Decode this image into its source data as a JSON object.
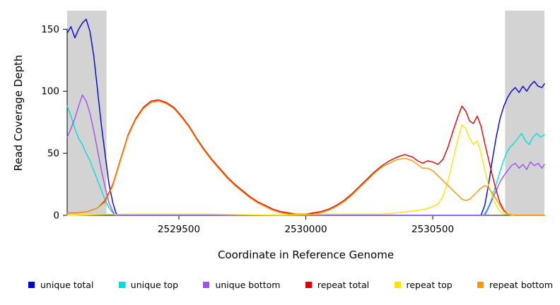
{
  "chart_data": {
    "type": "line",
    "title": "",
    "xlabel": "Coordinate in Reference Genome",
    "ylabel": "Read Coverage Depth",
    "xlim": [
      2529060,
      2530940
    ],
    "ylim": [
      0,
      165
    ],
    "x_ticks": [
      2529500,
      2530000,
      2530500
    ],
    "y_ticks": [
      0,
      50,
      100,
      150
    ],
    "grid": false,
    "legend_position": "bottom",
    "band_color": "#d3d3d3",
    "shaded_regions": [
      [
        2529060,
        2529215
      ],
      [
        2530785,
        2530940
      ]
    ],
    "series": [
      {
        "name": "unique total",
        "color": "#0000e0",
        "points": [
          [
            2529060,
            147
          ],
          [
            2529075,
            152
          ],
          [
            2529090,
            143
          ],
          [
            2529105,
            150
          ],
          [
            2529120,
            155
          ],
          [
            2529135,
            158
          ],
          [
            2529150,
            148
          ],
          [
            2529165,
            128
          ],
          [
            2529180,
            100
          ],
          [
            2529195,
            72
          ],
          [
            2529210,
            48
          ],
          [
            2529225,
            25
          ],
          [
            2529240,
            10
          ],
          [
            2529252,
            2
          ],
          [
            2529260,
            0
          ],
          [
            2530690,
            0
          ],
          [
            2530705,
            8
          ],
          [
            2530720,
            25
          ],
          [
            2530735,
            45
          ],
          [
            2530750,
            63
          ],
          [
            2530765,
            78
          ],
          [
            2530780,
            88
          ],
          [
            2530795,
            95
          ],
          [
            2530810,
            100
          ],
          [
            2530825,
            103
          ],
          [
            2530840,
            99
          ],
          [
            2530855,
            104
          ],
          [
            2530870,
            100
          ],
          [
            2530885,
            105
          ],
          [
            2530900,
            108
          ],
          [
            2530915,
            104
          ],
          [
            2530930,
            103
          ],
          [
            2530940,
            106
          ]
        ]
      },
      {
        "name": "unique top",
        "color": "#00dde0",
        "points": [
          [
            2529060,
            88
          ],
          [
            2529075,
            80
          ],
          [
            2529090,
            70
          ],
          [
            2529105,
            62
          ],
          [
            2529120,
            57
          ],
          [
            2529135,
            50
          ],
          [
            2529150,
            44
          ],
          [
            2529165,
            36
          ],
          [
            2529180,
            28
          ],
          [
            2529195,
            20
          ],
          [
            2529210,
            12
          ],
          [
            2529225,
            6
          ],
          [
            2529240,
            2
          ],
          [
            2529250,
            0
          ],
          [
            2530700,
            0
          ],
          [
            2530715,
            5
          ],
          [
            2530730,
            12
          ],
          [
            2530745,
            22
          ],
          [
            2530760,
            32
          ],
          [
            2530775,
            42
          ],
          [
            2530790,
            50
          ],
          [
            2530805,
            55
          ],
          [
            2530820,
            58
          ],
          [
            2530835,
            62
          ],
          [
            2530850,
            66
          ],
          [
            2530865,
            60
          ],
          [
            2530880,
            57
          ],
          [
            2530895,
            63
          ],
          [
            2530910,
            66
          ],
          [
            2530925,
            63
          ],
          [
            2530940,
            65
          ]
        ]
      },
      {
        "name": "unique bottom",
        "color": "#a050f0",
        "points": [
          [
            2529060,
            63
          ],
          [
            2529075,
            70
          ],
          [
            2529090,
            78
          ],
          [
            2529105,
            88
          ],
          [
            2529120,
            97
          ],
          [
            2529135,
            92
          ],
          [
            2529150,
            82
          ],
          [
            2529165,
            68
          ],
          [
            2529180,
            52
          ],
          [
            2529195,
            36
          ],
          [
            2529210,
            22
          ],
          [
            2529225,
            10
          ],
          [
            2529240,
            3
          ],
          [
            2529250,
            0
          ],
          [
            2530705,
            0
          ],
          [
            2530720,
            6
          ],
          [
            2530735,
            13
          ],
          [
            2530750,
            20
          ],
          [
            2530765,
            27
          ],
          [
            2530780,
            32
          ],
          [
            2530795,
            36
          ],
          [
            2530810,
            40
          ],
          [
            2530825,
            42
          ],
          [
            2530840,
            38
          ],
          [
            2530855,
            41
          ],
          [
            2530870,
            37
          ],
          [
            2530885,
            43
          ],
          [
            2530900,
            40
          ],
          [
            2530915,
            42
          ],
          [
            2530930,
            38
          ],
          [
            2530940,
            41
          ]
        ]
      },
      {
        "name": "repeat total",
        "color": "#e00000",
        "points": [
          [
            2529060,
            2
          ],
          [
            2529100,
            2
          ],
          [
            2529140,
            3
          ],
          [
            2529180,
            6
          ],
          [
            2529210,
            12
          ],
          [
            2529240,
            25
          ],
          [
            2529270,
            45
          ],
          [
            2529300,
            65
          ],
          [
            2529330,
            78
          ],
          [
            2529360,
            87
          ],
          [
            2529390,
            92
          ],
          [
            2529420,
            93
          ],
          [
            2529450,
            91
          ],
          [
            2529480,
            87
          ],
          [
            2529510,
            80
          ],
          [
            2529540,
            72
          ],
          [
            2529570,
            62
          ],
          [
            2529600,
            53
          ],
          [
            2529630,
            45
          ],
          [
            2529660,
            38
          ],
          [
            2529690,
            31
          ],
          [
            2529720,
            25
          ],
          [
            2529750,
            20
          ],
          [
            2529780,
            15
          ],
          [
            2529810,
            11
          ],
          [
            2529840,
            8
          ],
          [
            2529870,
            5
          ],
          [
            2529900,
            3
          ],
          [
            2529930,
            2
          ],
          [
            2529960,
            1
          ],
          [
            2530000,
            1
          ],
          [
            2530030,
            2
          ],
          [
            2530060,
            3
          ],
          [
            2530090,
            5
          ],
          [
            2530120,
            8
          ],
          [
            2530150,
            12
          ],
          [
            2530180,
            17
          ],
          [
            2530210,
            23
          ],
          [
            2530240,
            29
          ],
          [
            2530270,
            35
          ],
          [
            2530300,
            40
          ],
          [
            2530330,
            44
          ],
          [
            2530360,
            47
          ],
          [
            2530390,
            49
          ],
          [
            2530420,
            47
          ],
          [
            2530440,
            44
          ],
          [
            2530460,
            42
          ],
          [
            2530480,
            44
          ],
          [
            2530500,
            43
          ],
          [
            2530520,
            41
          ],
          [
            2530540,
            45
          ],
          [
            2530560,
            55
          ],
          [
            2530580,
            68
          ],
          [
            2530600,
            80
          ],
          [
            2530615,
            88
          ],
          [
            2530630,
            84
          ],
          [
            2530645,
            76
          ],
          [
            2530660,
            74
          ],
          [
            2530675,
            80
          ],
          [
            2530690,
            72
          ],
          [
            2530705,
            58
          ],
          [
            2530720,
            45
          ],
          [
            2530735,
            32
          ],
          [
            2530750,
            20
          ],
          [
            2530765,
            10
          ],
          [
            2530780,
            4
          ],
          [
            2530795,
            1
          ],
          [
            2530820,
            0
          ],
          [
            2530940,
            0
          ]
        ]
      },
      {
        "name": "repeat top",
        "color": "#ffe400",
        "points": [
          [
            2529060,
            0
          ],
          [
            2529300,
            1
          ],
          [
            2529390,
            1
          ],
          [
            2529600,
            1
          ],
          [
            2529900,
            0
          ],
          [
            2530100,
            1
          ],
          [
            2530300,
            1
          ],
          [
            2530360,
            2
          ],
          [
            2530400,
            3
          ],
          [
            2530440,
            4
          ],
          [
            2530470,
            5
          ],
          [
            2530500,
            7
          ],
          [
            2530520,
            9
          ],
          [
            2530540,
            15
          ],
          [
            2530560,
            28
          ],
          [
            2530580,
            45
          ],
          [
            2530600,
            62
          ],
          [
            2530615,
            73
          ],
          [
            2530630,
            70
          ],
          [
            2530645,
            62
          ],
          [
            2530660,
            57
          ],
          [
            2530675,
            60
          ],
          [
            2530690,
            50
          ],
          [
            2530705,
            36
          ],
          [
            2530720,
            24
          ],
          [
            2530735,
            15
          ],
          [
            2530750,
            8
          ],
          [
            2530765,
            3
          ],
          [
            2530780,
            1
          ],
          [
            2530820,
            0
          ],
          [
            2530940,
            0
          ]
        ]
      },
      {
        "name": "repeat bottom",
        "color": "#ff9500",
        "points": [
          [
            2529060,
            2
          ],
          [
            2529100,
            2
          ],
          [
            2529140,
            3
          ],
          [
            2529180,
            6
          ],
          [
            2529210,
            11
          ],
          [
            2529240,
            24
          ],
          [
            2529270,
            44
          ],
          [
            2529300,
            64
          ],
          [
            2529330,
            77
          ],
          [
            2529360,
            86
          ],
          [
            2529390,
            91
          ],
          [
            2529420,
            92
          ],
          [
            2529450,
            90
          ],
          [
            2529480,
            86
          ],
          [
            2529510,
            79
          ],
          [
            2529540,
            71
          ],
          [
            2529570,
            61
          ],
          [
            2529600,
            52
          ],
          [
            2529630,
            44
          ],
          [
            2529660,
            37
          ],
          [
            2529690,
            30
          ],
          [
            2529720,
            24
          ],
          [
            2529750,
            19
          ],
          [
            2529780,
            14
          ],
          [
            2529810,
            10
          ],
          [
            2529840,
            7
          ],
          [
            2529870,
            4
          ],
          [
            2529900,
            2
          ],
          [
            2529930,
            1
          ],
          [
            2529960,
            1
          ],
          [
            2530000,
            1
          ],
          [
            2530030,
            1
          ],
          [
            2530060,
            2
          ],
          [
            2530090,
            4
          ],
          [
            2530120,
            7
          ],
          [
            2530150,
            11
          ],
          [
            2530180,
            16
          ],
          [
            2530210,
            22
          ],
          [
            2530240,
            28
          ],
          [
            2530270,
            34
          ],
          [
            2530300,
            39
          ],
          [
            2530330,
            42
          ],
          [
            2530360,
            45
          ],
          [
            2530390,
            46
          ],
          [
            2530420,
            44
          ],
          [
            2530440,
            41
          ],
          [
            2530460,
            38
          ],
          [
            2530480,
            38
          ],
          [
            2530500,
            36
          ],
          [
            2530520,
            32
          ],
          [
            2530540,
            28
          ],
          [
            2530560,
            24
          ],
          [
            2530580,
            20
          ],
          [
            2530600,
            16
          ],
          [
            2530615,
            13
          ],
          [
            2530630,
            12
          ],
          [
            2530645,
            13
          ],
          [
            2530660,
            16
          ],
          [
            2530675,
            19
          ],
          [
            2530690,
            22
          ],
          [
            2530705,
            24
          ],
          [
            2530720,
            22
          ],
          [
            2530735,
            18
          ],
          [
            2530750,
            13
          ],
          [
            2530765,
            8
          ],
          [
            2530780,
            3
          ],
          [
            2530795,
            1
          ],
          [
            2530820,
            0
          ],
          [
            2530940,
            0
          ]
        ]
      }
    ]
  }
}
